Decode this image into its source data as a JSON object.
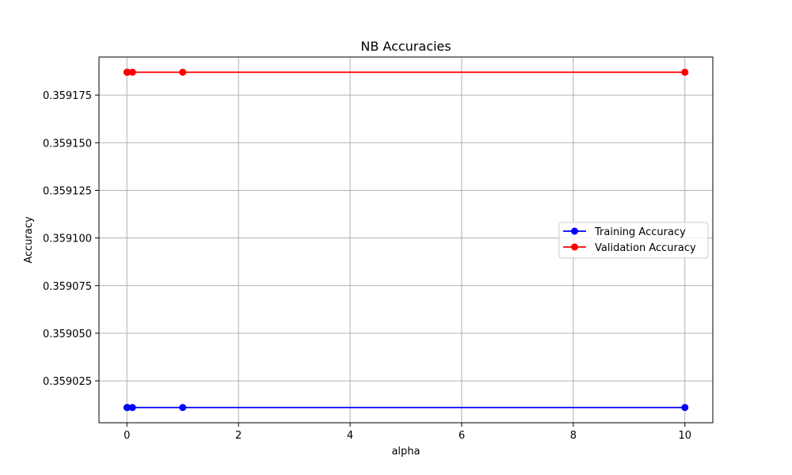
{
  "chart_data": {
    "type": "line",
    "title": "NB Accuracies",
    "xlabel": "alpha",
    "ylabel": "Accuracy",
    "x": [
      0.001,
      0.01,
      0.1,
      1,
      10
    ],
    "series": [
      {
        "name": "Training Accuracy",
        "color": "#0000ff",
        "marker": "circle",
        "values": [
          0.359011,
          0.359011,
          0.359011,
          0.359011,
          0.359011
        ]
      },
      {
        "name": "Validation Accuracy",
        "color": "#ff0000",
        "marker": "circle",
        "values": [
          0.359187,
          0.359187,
          0.359187,
          0.359187,
          0.359187
        ]
      }
    ],
    "xlim": [
      -0.5,
      10.5
    ],
    "ylim": [
      0.359003,
      0.359195
    ],
    "xticks": [
      0,
      2,
      4,
      6,
      8,
      10
    ],
    "xtick_labels": [
      "0",
      "2",
      "4",
      "6",
      "8",
      "10"
    ],
    "yticks": [
      0.359025,
      0.35905,
      0.359075,
      0.3591,
      0.359125,
      0.35915,
      0.359175
    ],
    "ytick_labels": [
      "0.359025",
      "0.359050",
      "0.359075",
      "0.359100",
      "0.359125",
      "0.359150",
      "0.359175"
    ],
    "grid": true,
    "legend_position": "center-right"
  }
}
